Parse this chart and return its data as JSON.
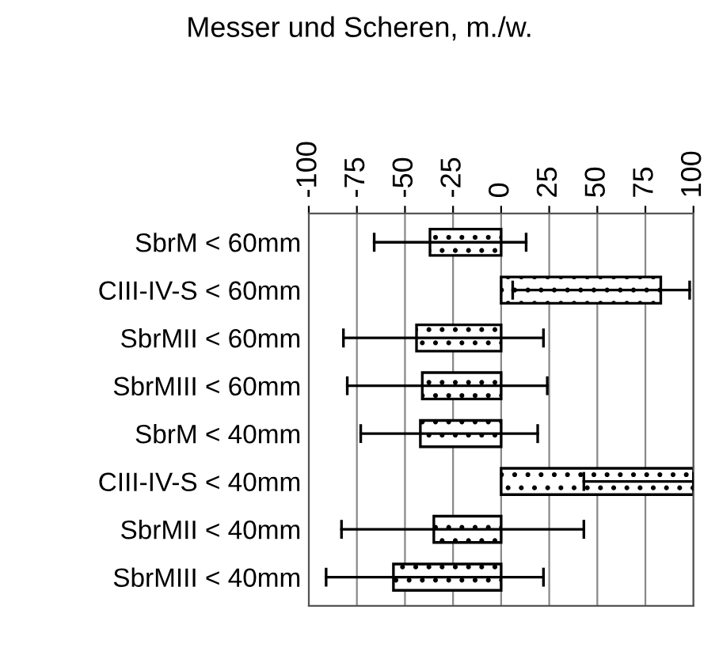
{
  "chart_data": {
    "type": "bar",
    "orientation": "horizontal",
    "title": "Messer und Scheren, m./w.",
    "categories": [
      "SbrM < 60mm",
      "CIII-IV-S < 60mm",
      "SbrMII < 60mm",
      "SbrMIII < 60mm",
      "SbrM < 40mm",
      "CIII-IV-S < 40mm",
      "SbrMII < 40mm",
      "SbrMIII < 40mm"
    ],
    "values": [
      -37,
      83,
      -44,
      -41,
      -42,
      100,
      -35,
      -56
    ],
    "errors": [
      [
        -66,
        13
      ],
      [
        6,
        98
      ],
      [
        -82,
        22
      ],
      [
        -80,
        24
      ],
      [
        -73,
        19
      ],
      [
        43,
        100
      ],
      [
        -83,
        43
      ],
      [
        -91,
        22
      ]
    ],
    "xlim": [
      -100,
      100
    ],
    "xticks": [
      -100,
      -75,
      -50,
      -25,
      0,
      25,
      50,
      75,
      100
    ],
    "grid": "x"
  }
}
